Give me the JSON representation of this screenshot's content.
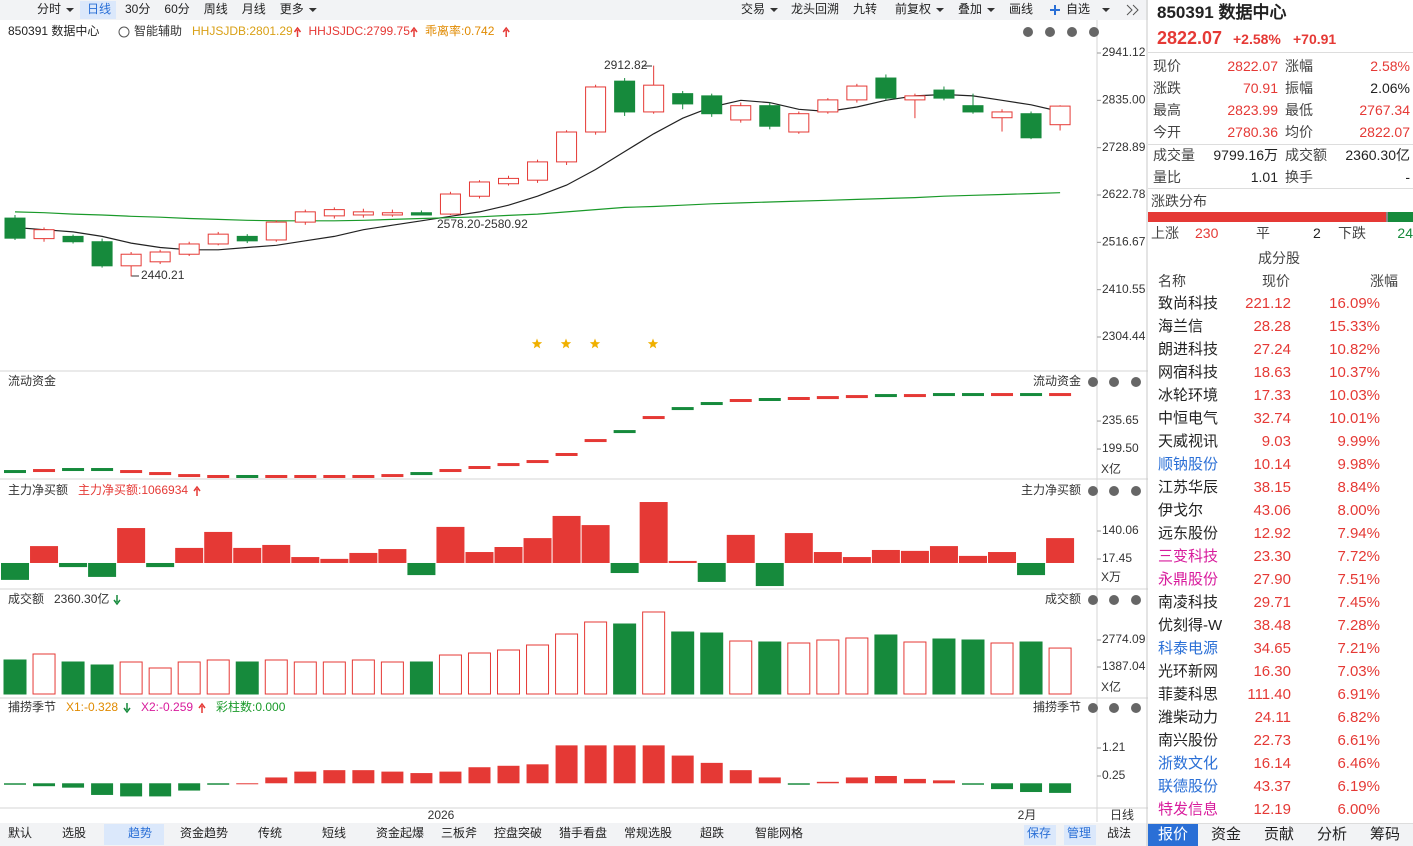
{
  "toolbar": {
    "periods": [
      "分时",
      "日线",
      "30分",
      "60分",
      "周线",
      "月线",
      "更多"
    ],
    "active": 1,
    "tools": [
      "交易",
      "龙头回溯",
      "九转",
      "前复权",
      "叠加",
      "画线",
      "自选"
    ]
  },
  "main": {
    "title": "850391 数据中心",
    "assist": "智能辅助",
    "indicators": [
      {
        "text": "HHJSJDB:2801.29",
        "color": "#d9a016",
        "arrow": "up"
      },
      {
        "text": "HHJSJDC:2799.75",
        "color": "#e53935",
        "arrow": "up"
      },
      {
        "text": "乖离率:0.742",
        "color": "#e08a00",
        "arrow": "up"
      }
    ],
    "ylim": [
      2230.46,
      2959.05
    ],
    "yticks": [
      2941.12,
      {
        "value": 2835,
        "label": "2835.00"
      },
      2728.89,
      2622.78,
      2516.67,
      2410.55,
      2304.44
    ],
    "annotations": [
      "2912.82",
      "2440.21",
      "2578.20-2580.92"
    ],
    "candles": {
      "open": [
        2571,
        2525,
        2530,
        2518,
        2464,
        2473,
        2490,
        2513,
        2530,
        2522,
        2562,
        2576,
        2578,
        2578,
        2583,
        2580,
        2620,
        2648,
        2656,
        2697,
        2764,
        2878,
        2809,
        2850,
        2845,
        2791,
        2823,
        2764,
        2809,
        2836,
        2885,
        2836,
        2858,
        2823,
        2796,
        2805,
        2780.36
      ],
      "close": [
        2526,
        2545,
        2518,
        2464,
        2490,
        2495,
        2513,
        2535,
        2520,
        2562,
        2585,
        2590,
        2585,
        2583,
        2578,
        2625,
        2652,
        2660,
        2697,
        2764,
        2865,
        2809,
        2869,
        2827,
        2805,
        2823,
        2777,
        2805,
        2836,
        2867,
        2840,
        2845,
        2840,
        2809,
        2809,
        2751,
        2822.07
      ],
      "high": [
        2578,
        2550,
        2534,
        2525,
        2495,
        2500,
        2518,
        2540,
        2535,
        2566,
        2590,
        2595,
        2592,
        2590,
        2588,
        2630,
        2656,
        2666,
        2702,
        2768,
        2870,
        2885,
        2912.82,
        2856,
        2850,
        2830,
        2830,
        2810,
        2840,
        2872,
        2893,
        2850,
        2866,
        2850,
        2815,
        2810,
        2823.99
      ],
      "low": [
        2522,
        2518,
        2514,
        2460,
        2440.21,
        2468,
        2486,
        2510,
        2515,
        2518,
        2556,
        2570,
        2572,
        2574,
        2578.2,
        2578,
        2615,
        2644,
        2650,
        2690,
        2758,
        2800,
        2805,
        2815,
        2798,
        2785,
        2770,
        2760,
        2805,
        2830,
        2835,
        2795,
        2835,
        2805,
        2765,
        2748,
        2767.34
      ]
    },
    "lines": [
      {
        "color": "#222222",
        "values": [
          2550,
          2545,
          2540,
          2530,
          2515,
          2505,
          2500,
          2500,
          2505,
          2510,
          2520,
          2530,
          2545,
          2555,
          2565,
          2575,
          2585,
          2600,
          2620,
          2645,
          2680,
          2720,
          2760,
          2795,
          2820,
          2835,
          2830,
          2815,
          2810,
          2820,
          2835,
          2845,
          2848,
          2845,
          2835,
          2825,
          2810
        ]
      },
      {
        "color": "#1a9a2a",
        "values": [
          2585,
          2583,
          2580,
          2578,
          2575,
          2573,
          2570,
          2568,
          2566,
          2565,
          2565,
          2565,
          2566,
          2568,
          2570,
          2572,
          2574,
          2577,
          2580,
          2585,
          2590,
          2595,
          2597,
          2600,
          2603,
          2605,
          2607,
          2609,
          2611,
          2613,
          2615,
          2617,
          2620,
          2622,
          2624,
          2626,
          2628
        ]
      }
    ]
  },
  "flow": {
    "label": "流动资金",
    "unit": "X亿",
    "ylim": [
      162.1,
      278.3
    ],
    "yticks": [
      235.65,
      {
        "value": 199.5,
        "label": "199.50"
      }
    ],
    "values": [
      169.8,
      171.1,
      172.4,
      172.4,
      169.8,
      167.2,
      164.6,
      163.4,
      163.4,
      163.4,
      163.4,
      163.4,
      163.4,
      164.6,
      167.2,
      171.1,
      175,
      178.8,
      182.7,
      191.8,
      209.8,
      221.4,
      239.5,
      251.1,
      257.6,
      261.5,
      262.8,
      264.1,
      265.3,
      266.6,
      267.9,
      267.9,
      269.2,
      269.2,
      269.2,
      269.2,
      269.2
    ]
  },
  "netbuy": {
    "label": "主力净买额",
    "info": "主力净买额:1066934",
    "unit": "X万",
    "ylim": [
      -118.3,
      284.6
    ],
    "yticks": [
      140.06,
      17.45
    ],
    "values": [
      -74,
      74,
      -18,
      -61,
      153,
      -18,
      66,
      136,
      66,
      79,
      26,
      18,
      44,
      61,
      -53,
      158,
      48,
      70,
      109,
      206,
      166,
      -44,
      267,
      9,
      -83,
      123,
      -101,
      131,
      48,
      26,
      57,
      53,
      74,
      31,
      48,
      -53,
      109
    ]
  },
  "turnover": {
    "label": "成交额",
    "info": "2360.30亿",
    "unit": "X亿",
    "ylim": [
      -102.7,
      4520.7
    ],
    "yticks": [
      2774.09,
      1387.04
    ],
    "values": [
      1747,
      2055,
      1644,
      1490,
      1644,
      1336,
      1644,
      1747,
      1644,
      1747,
      1644,
      1644,
      1747,
      1644,
      1644,
      2003,
      2106,
      2260,
      2517,
      3082,
      3699,
      3596,
      4213,
      3185,
      3133,
      2722,
      2671,
      2620,
      2774,
      2877,
      3031,
      2671,
      2825,
      2774,
      2620,
      2671,
      2360.3
    ]
  },
  "catch": {
    "label": "捕捞季节",
    "x1": "X1:-0.328",
    "x2": "X2:-0.259",
    "bars": "彩柱数:0.000",
    "ylim": [
      -0.779,
      2.307
    ],
    "yticks": [
      1.21,
      0.25
    ],
    "values": [
      -0.05,
      -0.1,
      -0.15,
      -0.4,
      -0.45,
      -0.45,
      -0.25,
      -0.05,
      0,
      0.2,
      0.4,
      0.45,
      0.45,
      0.4,
      0.35,
      0.4,
      0.55,
      0.6,
      0.65,
      1.3,
      1.3,
      1.3,
      1.3,
      0.95,
      0.7,
      0.45,
      0.2,
      -0.05,
      0.05,
      0.2,
      0.25,
      0.15,
      0.1,
      -0.05,
      -0.2,
      -0.3,
      -0.33
    ]
  },
  "xaxis": {
    "year": "2026",
    "month": "2月",
    "period": "日线"
  },
  "bottom_tabs": {
    "items": [
      "默认",
      "选股",
      "趋势",
      "资金趋势",
      "传统",
      "短线",
      "资金起爆",
      "三板斧",
      "控盘突破",
      "猎手看盘",
      "常规选股",
      "超跌",
      "智能网格"
    ],
    "active": 2,
    "actions": [
      "保存",
      "管理",
      "战法"
    ]
  },
  "quote": {
    "title": "850391 数据中心",
    "price": "2822.07",
    "pct": "+2.58%",
    "change": "+70.91",
    "items": [
      {
        "label": "现价",
        "value": "2822.07",
        "color": "#e53935"
      },
      {
        "label": "涨幅",
        "value": "2.58%",
        "color": "#e53935"
      },
      {
        "label": "涨跌",
        "value": "70.91",
        "color": "#e53935"
      },
      {
        "label": "振幅",
        "value": "2.06%",
        "color": "#222222"
      },
      {
        "label": "最高",
        "value": "2823.99",
        "color": "#e53935"
      },
      {
        "label": "最低",
        "value": "2767.34",
        "color": "#e53935"
      },
      {
        "label": "今开",
        "value": "2780.36",
        "color": "#e53935"
      },
      {
        "label": "均价",
        "value": "2822.07",
        "color": "#e53935"
      },
      {
        "label": "成交量",
        "value": "9799.16万",
        "color": "#222222"
      },
      {
        "label": "成交额",
        "value": "2360.30亿",
        "color": "#222222"
      },
      {
        "label": "量比",
        "value": "1.01",
        "color": "#222222"
      },
      {
        "label": "换手",
        "value": "-",
        "color": "#222222"
      }
    ]
  },
  "breadth": {
    "title": "涨跌分布",
    "up_label": "上涨",
    "up": 230,
    "flat_label": "平",
    "flat": 2,
    "down_label": "下跌",
    "down": 24
  },
  "constituents": {
    "title": "成分股",
    "headers": [
      "名称",
      "现价",
      "涨幅"
    ],
    "rows": [
      {
        "name": "致尚科技",
        "price": "221.12",
        "change": "16.09%",
        "color": "#222222"
      },
      {
        "name": "海兰信",
        "price": "28.28",
        "change": "15.33%",
        "color": "#222222"
      },
      {
        "name": "朗进科技",
        "price": "27.24",
        "change": "10.82%",
        "color": "#222222"
      },
      {
        "name": "网宿科技",
        "price": "18.63",
        "change": "10.37%",
        "color": "#222222"
      },
      {
        "name": "冰轮环境",
        "price": "17.33",
        "change": "10.03%",
        "color": "#222222"
      },
      {
        "name": "中恒电气",
        "price": "32.74",
        "change": "10.01%",
        "color": "#222222"
      },
      {
        "name": "天威视讯",
        "price": "9.03",
        "change": "9.99%",
        "color": "#222222"
      },
      {
        "name": "顺钠股份",
        "price": "10.14",
        "change": "9.98%",
        "color": "#2a6fd6"
      },
      {
        "name": "江苏华辰",
        "price": "38.15",
        "change": "8.84%",
        "color": "#222222"
      },
      {
        "name": "伊戈尔",
        "price": "43.06",
        "change": "8.00%",
        "color": "#222222"
      },
      {
        "name": "远东股份",
        "price": "12.92",
        "change": "7.94%",
        "color": "#222222"
      },
      {
        "name": "三变科技",
        "price": "23.30",
        "change": "7.72%",
        "color": "#d81b9c"
      },
      {
        "name": "永鼎股份",
        "price": "27.90",
        "change": "7.51%",
        "color": "#d81b9c"
      },
      {
        "name": "南凌科技",
        "price": "29.71",
        "change": "7.45%",
        "color": "#222222"
      },
      {
        "name": "优刻得-W",
        "price": "38.48",
        "change": "7.28%",
        "color": "#222222"
      },
      {
        "name": "科泰电源",
        "price": "34.65",
        "change": "7.21%",
        "color": "#2a6fd6"
      },
      {
        "name": "光环新网",
        "price": "16.30",
        "change": "7.03%",
        "color": "#222222"
      },
      {
        "name": "菲菱科思",
        "price": "111.40",
        "change": "6.91%",
        "color": "#222222"
      },
      {
        "name": "潍柴动力",
        "price": "24.11",
        "change": "6.82%",
        "color": "#222222"
      },
      {
        "name": "南兴股份",
        "price": "22.73",
        "change": "6.61%",
        "color": "#222222"
      },
      {
        "name": "浙数文化",
        "price": "16.14",
        "change": "6.46%",
        "color": "#2a6fd6"
      },
      {
        "name": "联德股份",
        "price": "43.37",
        "change": "6.19%",
        "color": "#2a6fd6"
      },
      {
        "name": "特发信息",
        "price": "12.19",
        "change": "6.00%",
        "color": "#d81b9c"
      }
    ]
  },
  "right_tabs": {
    "items": [
      "报价",
      "资金",
      "贡献",
      "分析",
      "筹码"
    ],
    "active": 0
  }
}
